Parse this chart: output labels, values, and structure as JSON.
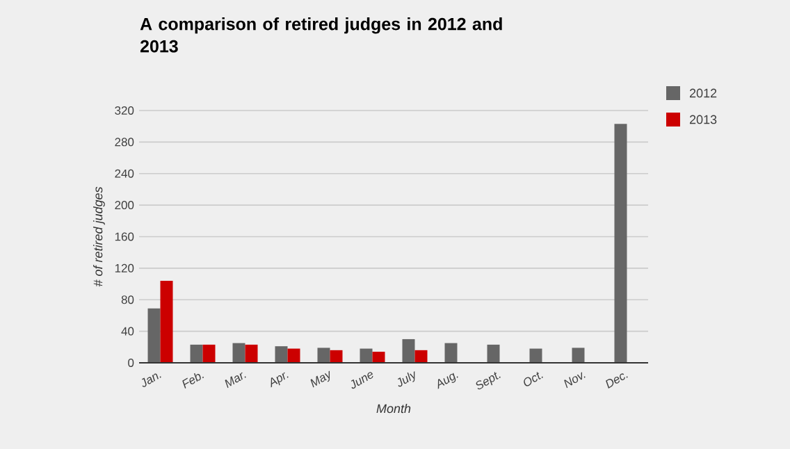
{
  "chart_data": {
    "type": "bar",
    "title": "A comparison of retired judges in 2012 and 2013",
    "xlabel": "Month",
    "ylabel": "# of retired judges",
    "categories": [
      "Jan.",
      "Feb.",
      "Mar.",
      "Apr.",
      "May",
      "June",
      "July",
      "Aug.",
      "Sept.",
      "Oct.",
      "Nov.",
      "Dec."
    ],
    "series": [
      {
        "name": "2012",
        "color": "#666666",
        "values": [
          69,
          23,
          25,
          21,
          19,
          18,
          30,
          25,
          23,
          18,
          19,
          303
        ]
      },
      {
        "name": "2013",
        "color": "#cc0000",
        "values": [
          104,
          23,
          23,
          18,
          16,
          14,
          16,
          null,
          null,
          null,
          null,
          null
        ]
      }
    ],
    "ylim": [
      0,
      320
    ],
    "yticks": [
      0,
      40,
      80,
      120,
      160,
      200,
      240,
      280,
      320
    ],
    "grid": "y",
    "legend": "top right"
  }
}
